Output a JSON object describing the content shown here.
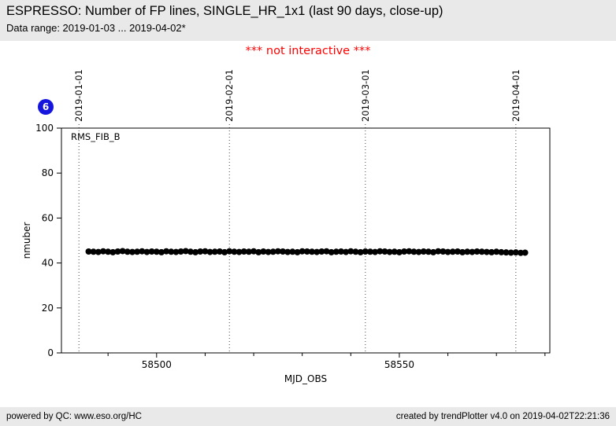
{
  "header": {
    "title": "ESPRESSO: Number of FP lines, SINGLE_HR_1x1 (last 90 days, close-up)",
    "subtitle": "Data range: 2019-01-03 ... 2019-04-02*"
  },
  "notice": "*** not interactive ***",
  "badge": {
    "label": "6",
    "color": "#1515dd"
  },
  "footer": {
    "left": "powered by QC: www.eso.org/HC",
    "right": "created by trendPlotter v4.0 on 2019-04-02T22:21:36"
  },
  "colors": {
    "header_bg": "#e9e9e9",
    "notice_red": "#ff0000",
    "badge_blue": "#1515dd",
    "point_black": "#000000"
  },
  "chart_data": {
    "type": "scatter",
    "series_label": "RMS_FIB_B",
    "xlabel": "MJD_OBS",
    "ylabel": "nmuber",
    "ylim": [
      0,
      100
    ],
    "xlim": [
      58480.4,
      58581
    ],
    "y_ticks": [
      0,
      20,
      40,
      60,
      80,
      100
    ],
    "x_major_ticks": [
      58500,
      58550
    ],
    "x_minor_ticks": [
      58490,
      58510,
      58520,
      58530,
      58540,
      58560,
      58570,
      58580
    ],
    "grid": "monthly dotted vertical lines, labeled on top axis",
    "legend_position": "top-left inside plot",
    "date_gridlines": [
      {
        "mjd": 58484,
        "label": "2019-01-01"
      },
      {
        "mjd": 58515,
        "label": "2019-02-01"
      },
      {
        "mjd": 58543,
        "label": "2019-03-01"
      },
      {
        "mjd": 58574,
        "label": "2019-04-01"
      }
    ],
    "points": {
      "x": [
        58486,
        58487,
        58488,
        58489,
        58490,
        58491,
        58492,
        58493,
        58494,
        58495,
        58496,
        58497,
        58498,
        58499,
        58500,
        58501,
        58502,
        58503,
        58504,
        58505,
        58506,
        58507,
        58508,
        58509,
        58510,
        58511,
        58512,
        58513,
        58514,
        58515,
        58516,
        58517,
        58518,
        58519,
        58520,
        58521,
        58522,
        58523,
        58524,
        58525,
        58526,
        58527,
        58528,
        58529,
        58530,
        58531,
        58532,
        58533,
        58534,
        58535,
        58536,
        58537,
        58538,
        58539,
        58540,
        58541,
        58542,
        58543,
        58544,
        58545,
        58546,
        58547,
        58548,
        58549,
        58550,
        58551,
        58552,
        58553,
        58554,
        58555,
        58556,
        58557,
        58558,
        58559,
        58560,
        58561,
        58562,
        58563,
        58564,
        58565,
        58566,
        58567,
        58568,
        58569,
        58570,
        58571,
        58572,
        58573,
        58574,
        58575,
        58575.9
      ],
      "y": [
        45.1,
        45.0,
        44.9,
        45.2,
        45.0,
        44.8,
        45.1,
        45.3,
        45.0,
        44.9,
        45.0,
        45.2,
        44.9,
        45.1,
        45.0,
        44.8,
        45.2,
        45.0,
        44.9,
        45.1,
        45.3,
        45.0,
        44.8,
        45.1,
        45.2,
        44.9,
        45.0,
        45.1,
        44.8,
        45.2,
        45.0,
        44.9,
        45.1,
        45.0,
        45.2,
        44.8,
        45.1,
        44.9,
        45.0,
        45.2,
        45.1,
        44.9,
        45.0,
        44.8,
        45.2,
        45.1,
        45.0,
        44.9,
        45.1,
        45.2,
        44.8,
        45.0,
        45.1,
        44.9,
        45.2,
        45.0,
        44.8,
        45.1,
        45.0,
        44.9,
        45.2,
        45.1,
        44.9,
        45.0,
        44.8,
        45.1,
        45.2,
        45.0,
        44.9,
        45.1,
        45.0,
        44.8,
        45.2,
        45.1,
        44.9,
        45.0,
        45.1,
        44.8,
        45.0,
        44.9,
        45.1,
        45.0,
        44.9,
        44.8,
        45.0,
        44.8,
        44.7,
        44.6,
        44.7,
        44.5,
        44.6
      ]
    }
  }
}
